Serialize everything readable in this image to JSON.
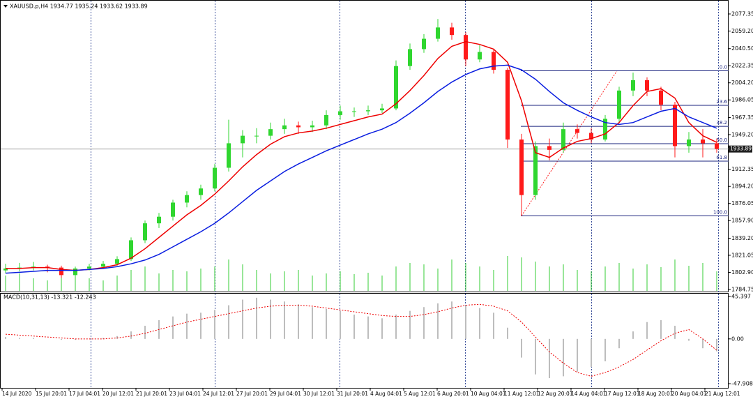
{
  "chart_data": [
    {
      "type": "candlestick",
      "title": "XAUUSD.p,H4  1934.77 1935.24 1933.62 1933.89",
      "x_labels": [
        "14 Jul 2020",
        "15 Jul 20:01",
        "17 Jul 04:01",
        "20 Jul 12:01",
        "21 Jul 20:01",
        "23 Jul 04:01",
        "24 Jul 12:01",
        "27 Jul 20:01",
        "29 Jul 04:01",
        "30 Jul 12:01",
        "31 Jul 20:01",
        "4 Aug 04:01",
        "5 Aug 12:01",
        "6 Aug 20:01",
        "10 Aug 04:01",
        "11 Aug 12:01",
        "12 Aug 20:01",
        "14 Aug 04:01",
        "17 Aug 12:01",
        "18 Aug 20:01",
        "20 Aug 04:01",
        "21 Aug 12:01"
      ],
      "open": [
        1805,
        1807,
        1808,
        1809,
        1808,
        1800,
        1807,
        1809,
        1812,
        1817,
        1837,
        1855,
        1862,
        1877,
        1885,
        1892,
        1914,
        1940,
        1948,
        1948,
        1955,
        1959,
        1957,
        1959,
        1970,
        1974,
        1974,
        1975,
        1977,
        2022,
        2040,
        2051,
        2063,
        2055,
        2029,
        2037,
        2018,
        1944,
        1885,
        1937,
        1933,
        1955,
        1951,
        1944,
        1966,
        1996,
        2007,
        1996,
        1981,
        1937,
        1944,
        1940
      ],
      "high": [
        1812,
        1813,
        1814,
        1811,
        1810,
        1809,
        1812,
        1815,
        1820,
        1840,
        1858,
        1866,
        1880,
        1889,
        1896,
        1918,
        1965,
        1954,
        1956,
        1962,
        1966,
        1963,
        1964,
        1975,
        1980,
        1978,
        1980,
        1982,
        2028,
        2046,
        2056,
        2072,
        2068,
        2058,
        2044,
        2040,
        2020,
        1950,
        1942,
        1945,
        1962,
        1960,
        1956,
        1970,
        2000,
        2015,
        2010,
        2000,
        1984,
        1952,
        1955,
        1945
      ],
      "low": [
        1802,
        1804,
        1805,
        1803,
        1797,
        1798,
        1805,
        1807,
        1810,
        1815,
        1834,
        1850,
        1858,
        1872,
        1880,
        1889,
        1910,
        1925,
        1940,
        1944,
        1950,
        1950,
        1952,
        1955,
        1965,
        1968,
        1970,
        1972,
        1975,
        2018,
        2036,
        2048,
        2050,
        2022,
        2026,
        2014,
        1935,
        1863,
        1880,
        1922,
        1930,
        1945,
        1940,
        1942,
        1962,
        1990,
        1990,
        1975,
        1925,
        1930,
        1925,
        1930
      ],
      "close": [
        1807,
        1808,
        1809,
        1808,
        1800,
        1807,
        1809,
        1812,
        1817,
        1837,
        1855,
        1862,
        1877,
        1885,
        1892,
        1914,
        1940,
        1948,
        1948,
        1955,
        1959,
        1957,
        1959,
        1970,
        1974,
        1974,
        1975,
        1977,
        2022,
        2040,
        2051,
        2063,
        2055,
        2029,
        2037,
        2018,
        1944,
        1885,
        1937,
        1933,
        1955,
        1951,
        1944,
        1966,
        1996,
        2007,
        1996,
        1981,
        1937,
        1944,
        1940,
        1934
      ],
      "up_color": "#2fd62f",
      "down_color": "#ff1a1a",
      "ma": [
        {
          "color": "#ee0000",
          "values": [
            1807,
            1807,
            1808,
            1808,
            1806,
            1805,
            1806,
            1808,
            1811,
            1818,
            1828,
            1840,
            1852,
            1864,
            1874,
            1886,
            1900,
            1915,
            1928,
            1939,
            1947,
            1951,
            1953,
            1956,
            1960,
            1964,
            1968,
            1971,
            1982,
            1996,
            2012,
            2030,
            2043,
            2048,
            2045,
            2040,
            2026,
            1985,
            1930,
            1925,
            1935,
            1942,
            1945,
            1950,
            1962,
            1980,
            1995,
            1998,
            1988,
            1962,
            1948,
            1941
          ]
        },
        {
          "color": "#0a1ee0",
          "values": [
            1802,
            1803,
            1804,
            1805,
            1805,
            1805,
            1806,
            1807,
            1809,
            1812,
            1816,
            1822,
            1830,
            1838,
            1846,
            1855,
            1866,
            1878,
            1890,
            1900,
            1910,
            1918,
            1925,
            1932,
            1938,
            1944,
            1950,
            1955,
            1962,
            1972,
            1983,
            1995,
            2005,
            2013,
            2019,
            2022,
            2023,
            2018,
            2008,
            1995,
            1983,
            1975,
            1968,
            1962,
            1960,
            1962,
            1968,
            1974,
            1977,
            1968,
            1962,
            1956
          ]
        }
      ],
      "volume": {
        "color": "#33cc33",
        "values": [
          22,
          25,
          18,
          15,
          28,
          20,
          18,
          15,
          22,
          30,
          35,
          25,
          30,
          28,
          32,
          35,
          45,
          38,
          30,
          25,
          28,
          30,
          22,
          25,
          28,
          24,
          26,
          22,
          35,
          40,
          38,
          32,
          45,
          40,
          35,
          30,
          50,
          48,
          42,
          35,
          38,
          30,
          28,
          35,
          40,
          32,
          38,
          34,
          45,
          36,
          40,
          28
        ]
      },
      "current_price": 1933.89,
      "fibonacci": [
        {
          "label": "0.0",
          "price": 2017
        },
        {
          "label": "23.6",
          "price": 1980.3
        },
        {
          "label": "38.2",
          "price": 1958
        },
        {
          "label": "50.0",
          "price": 1939.6
        },
        {
          "label": "61.8",
          "price": 1921
        },
        {
          "label": "100.0",
          "price": 1863
        }
      ],
      "ylim": [
        1782.5,
        2089.2
      ],
      "yticks": [
        2077.35,
        {
          "value": 2059.2,
          "label": "2059.20"
        },
        {
          "value": 2040.5,
          "label": "2040.50"
        },
        2022.35,
        {
          "value": 2004.2,
          "label": "2004.20"
        },
        1986.05,
        1967.35,
        {
          "value": 1949.2,
          "label": "1949.20"
        },
        1912.35,
        {
          "value": 1894.2,
          "label": "1894.20"
        },
        1876.05,
        {
          "value": 1857.9,
          "label": "1857.90"
        },
        {
          "value": 1839.2,
          "label": "1839.20"
        },
        1821.05,
        {
          "value": 1802.9,
          "label": "1802.90"
        },
        1784.75
      ]
    },
    {
      "type": "macd",
      "title": "MACD(10,31,13) -13.321 -12.243",
      "histogram": {
        "color": "#bdbdbd",
        "values": [
          2,
          1,
          1,
          0,
          -1,
          -1,
          0,
          1,
          3,
          8,
          14,
          20,
          24,
          27,
          28,
          31,
          36,
          42,
          44,
          42,
          40,
          37,
          34,
          32,
          30,
          26,
          24,
          22,
          26,
          30,
          34,
          38,
          40,
          36,
          33,
          28,
          12,
          -20,
          -38,
          -42,
          -40,
          -35,
          -30,
          -24,
          -10,
          8,
          18,
          20,
          14,
          -2,
          -10,
          -13.321
        ]
      },
      "signal": {
        "color": "#ee0000",
        "values": [
          5,
          4,
          3,
          2,
          1,
          0,
          0,
          0,
          1,
          3,
          6,
          10,
          14,
          18,
          21,
          24,
          27,
          30,
          33,
          35,
          36,
          36,
          35,
          33,
          31,
          29,
          27,
          25,
          24,
          24,
          26,
          29,
          33,
          36,
          37,
          35,
          30,
          18,
          2,
          -14,
          -26,
          -36,
          -40,
          -36,
          -30,
          -22,
          -12,
          -2,
          6,
          10,
          0,
          -12.243
        ]
      },
      "ylim": [
        -52.39,
        48.38
      ],
      "yticks": [
        45.397,
        {
          "value": 0,
          "label": "0.00"
        },
        -47.908
      ]
    }
  ]
}
